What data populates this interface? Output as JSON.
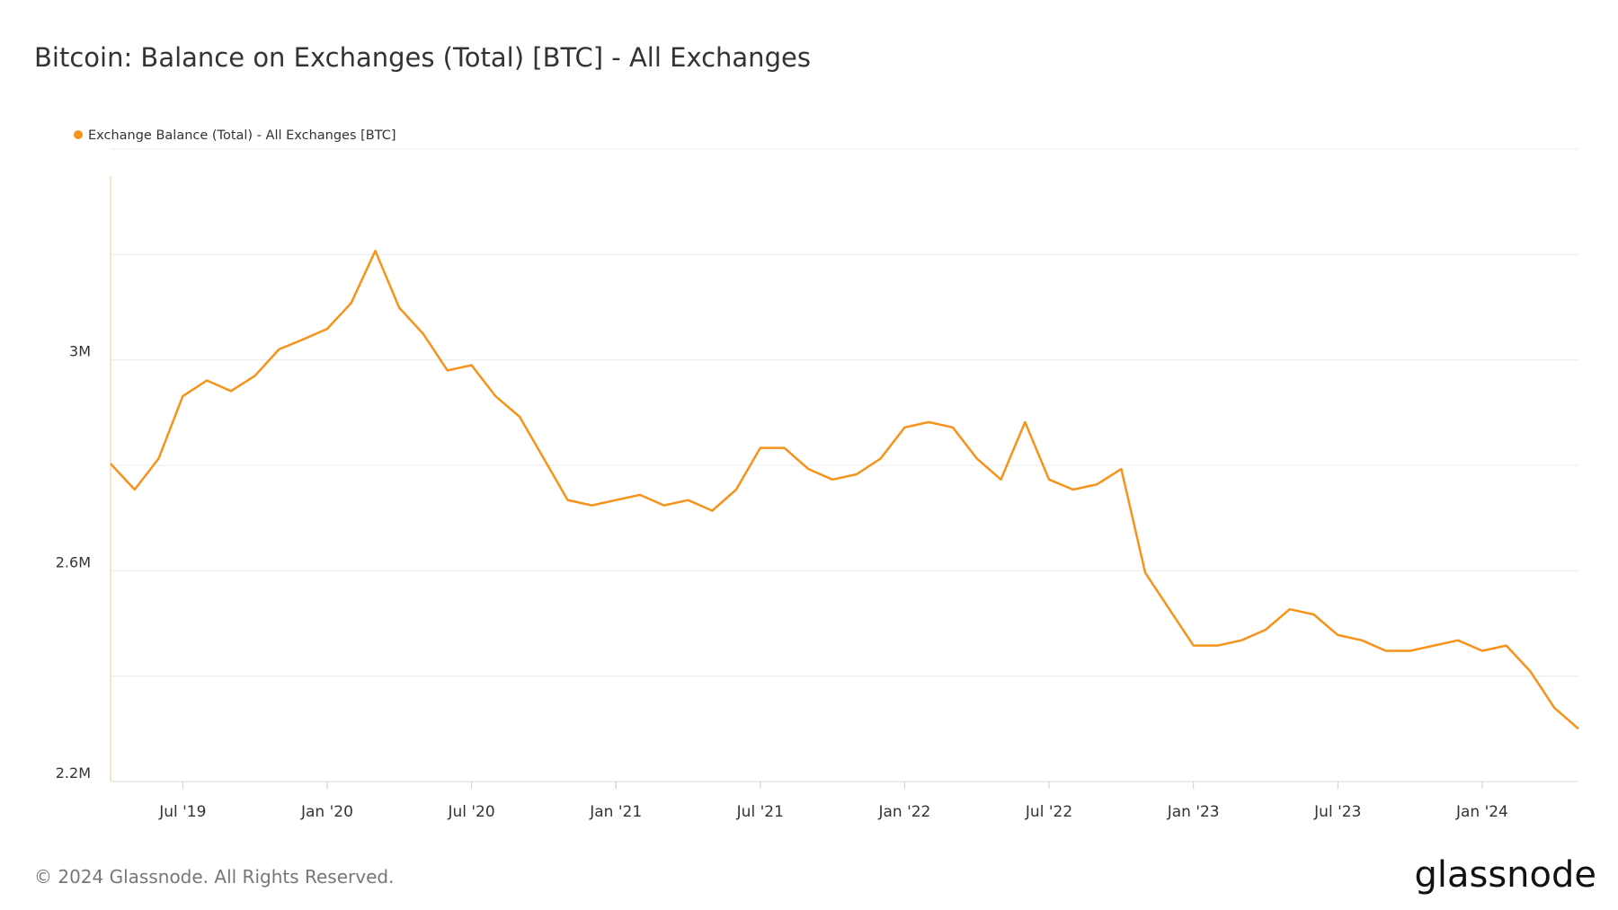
{
  "chart_data": {
    "type": "line",
    "title": "Bitcoin: Balance on Exchanges (Total) [BTC] - All Exchanges",
    "copyright": "© 2024 Glassnode. All Rights Reserved.",
    "brand": "glassnode",
    "x": [
      "2019-04",
      "2019-05",
      "2019-06",
      "2019-07",
      "2019-08",
      "2019-09",
      "2019-10",
      "2019-11",
      "2019-12",
      "2020-01",
      "2020-02",
      "2020-03",
      "2020-04",
      "2020-05",
      "2020-06",
      "2020-07",
      "2020-08",
      "2020-09",
      "2020-10",
      "2020-11",
      "2020-12",
      "2021-01",
      "2021-02",
      "2021-03",
      "2021-04",
      "2021-05",
      "2021-06",
      "2021-07",
      "2021-08",
      "2021-09",
      "2021-10",
      "2021-11",
      "2021-12",
      "2022-01",
      "2022-02",
      "2022-03",
      "2022-04",
      "2022-05",
      "2022-06",
      "2022-07",
      "2022-08",
      "2022-09",
      "2022-10",
      "2022-11",
      "2022-12",
      "2023-01",
      "2023-02",
      "2023-03",
      "2023-04",
      "2023-05",
      "2023-06",
      "2023-07",
      "2023-08",
      "2023-09",
      "2023-10",
      "2023-11",
      "2023-12",
      "2024-01",
      "2024-02",
      "2024-03",
      "2024-04",
      "2024-05"
    ],
    "series": [
      {
        "name": "Exchange Balance (Total) - All Exchanges [BTC]",
        "color": "#f7931a",
        "values": [
          2803000,
          2754000,
          2813000,
          2931000,
          2961000,
          2941000,
          2970000,
          3020000,
          3039000,
          3059000,
          3108000,
          3207000,
          3099000,
          3049000,
          2980000,
          2990000,
          2931000,
          2892000,
          2813000,
          2734000,
          2724000,
          2734000,
          2744000,
          2724000,
          2734000,
          2714000,
          2754000,
          2833000,
          2833000,
          2793000,
          2773000,
          2783000,
          2813000,
          2872000,
          2882000,
          2872000,
          2813000,
          2773000,
          2882000,
          2773000,
          2754000,
          2764000,
          2793000,
          2596000,
          2527000,
          2458000,
          2458000,
          2468000,
          2488000,
          2527000,
          2517000,
          2478000,
          2468000,
          2448000,
          2448000,
          2458000,
          2468000,
          2448000,
          2458000,
          2409000,
          2340000,
          2300000
        ]
      }
    ],
    "xlim": [
      "2019-04",
      "2024-05"
    ],
    "xticks": [
      {
        "value": "2019-07",
        "label": "Jul '19"
      },
      {
        "value": "2020-01",
        "label": "Jan '20"
      },
      {
        "value": "2020-07",
        "label": "Jul '20"
      },
      {
        "value": "2021-01",
        "label": "Jan '21"
      },
      {
        "value": "2021-07",
        "label": "Jul '21"
      },
      {
        "value": "2022-01",
        "label": "Jan '22"
      },
      {
        "value": "2022-07",
        "label": "Jul '22"
      },
      {
        "value": "2023-01",
        "label": "Jan '23"
      },
      {
        "value": "2023-07",
        "label": "Jul '23"
      },
      {
        "value": "2024-01",
        "label": "Jan '24"
      }
    ],
    "ylim": [
      2200000,
      3400000
    ],
    "yticks": [
      {
        "value": 2200000,
        "label": "2.2M"
      },
      {
        "value": 2600000,
        "label": "2.6M"
      },
      {
        "value": 3000000,
        "label": "3M"
      }
    ],
    "minor_yticks": [
      2400000,
      2800000,
      3200000,
      3400000
    ],
    "grid": true
  }
}
